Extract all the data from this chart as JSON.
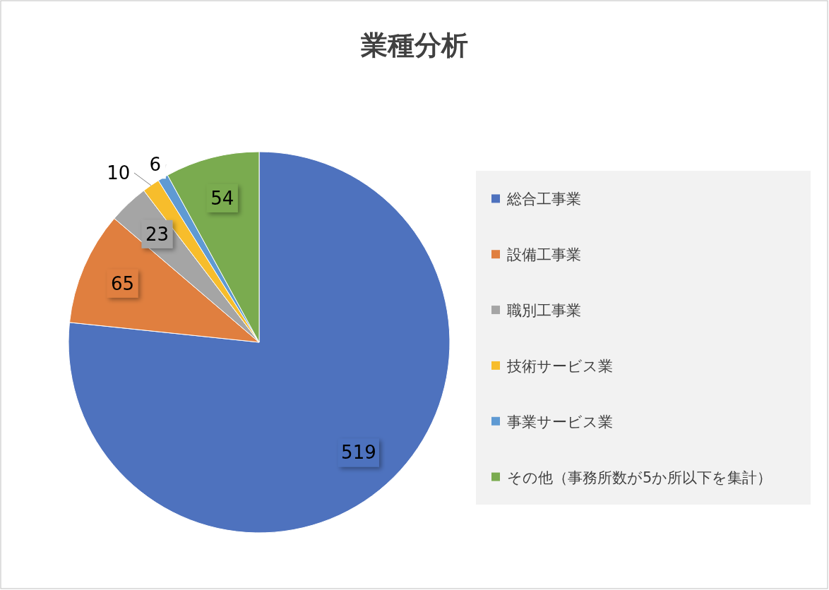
{
  "chart_data": {
    "type": "pie",
    "title": "業種分析",
    "categories": [
      "総合工事業",
      "設備工事業",
      "職別工事業",
      "技術サービス業",
      "事業サービス業",
      "その他（事務所数が5か所以下を集計）"
    ],
    "values": [
      519,
      65,
      23,
      10,
      6,
      54
    ],
    "colors": [
      "#4e72be",
      "#e07f3f",
      "#a5a5a5",
      "#f7bd2c",
      "#5f9ad3",
      "#7aab4f"
    ],
    "data_labels": true,
    "legend": "right"
  }
}
